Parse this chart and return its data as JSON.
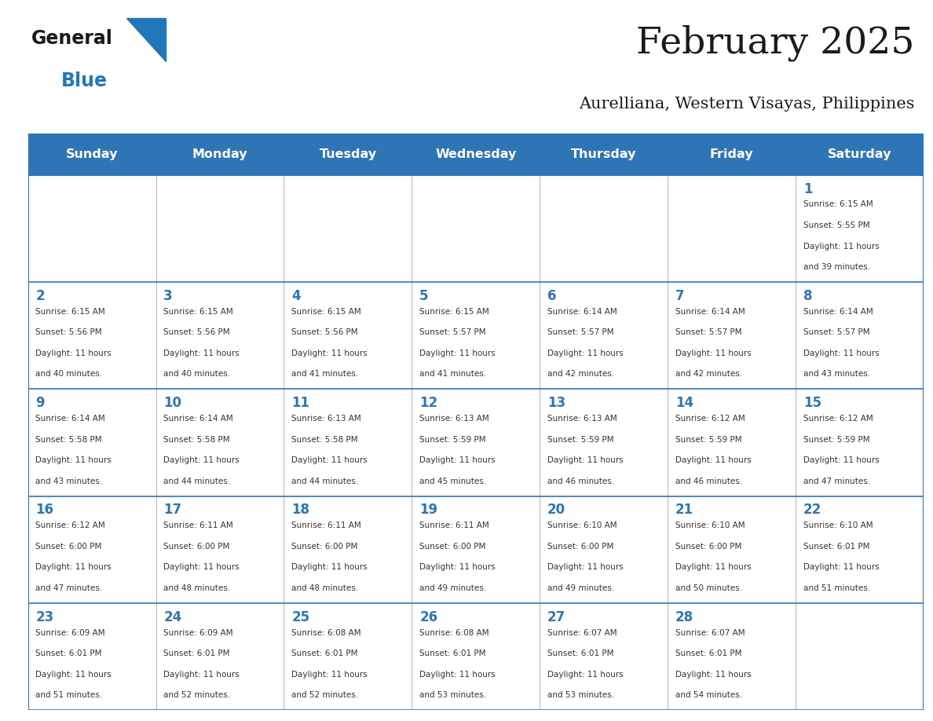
{
  "title": "February 2025",
  "subtitle": "Aurelliana, Western Visayas, Philippines",
  "header_bg": "#2E75B6",
  "header_text_color": "#FFFFFF",
  "border_color": "#2E75B6",
  "cell_border_color": "#AAAAAA",
  "day_names": [
    "Sunday",
    "Monday",
    "Tuesday",
    "Wednesday",
    "Thursday",
    "Friday",
    "Saturday"
  ],
  "title_color": "#1a1a1a",
  "subtitle_color": "#1a1a1a",
  "number_color": "#2E75B6",
  "text_color": "#333333",
  "logo_general_color": "#1a1a1a",
  "logo_blue_color": "#2277BB",
  "calendar_data": [
    [
      null,
      null,
      null,
      null,
      null,
      null,
      {
        "day": 1,
        "sunrise": "6:15 AM",
        "sunset": "5:55 PM",
        "daylight_hours": 11,
        "daylight_minutes": 39
      }
    ],
    [
      {
        "day": 2,
        "sunrise": "6:15 AM",
        "sunset": "5:56 PM",
        "daylight_hours": 11,
        "daylight_minutes": 40
      },
      {
        "day": 3,
        "sunrise": "6:15 AM",
        "sunset": "5:56 PM",
        "daylight_hours": 11,
        "daylight_minutes": 40
      },
      {
        "day": 4,
        "sunrise": "6:15 AM",
        "sunset": "5:56 PM",
        "daylight_hours": 11,
        "daylight_minutes": 41
      },
      {
        "day": 5,
        "sunrise": "6:15 AM",
        "sunset": "5:57 PM",
        "daylight_hours": 11,
        "daylight_minutes": 41
      },
      {
        "day": 6,
        "sunrise": "6:14 AM",
        "sunset": "5:57 PM",
        "daylight_hours": 11,
        "daylight_minutes": 42
      },
      {
        "day": 7,
        "sunrise": "6:14 AM",
        "sunset": "5:57 PM",
        "daylight_hours": 11,
        "daylight_minutes": 42
      },
      {
        "day": 8,
        "sunrise": "6:14 AM",
        "sunset": "5:57 PM",
        "daylight_hours": 11,
        "daylight_minutes": 43
      }
    ],
    [
      {
        "day": 9,
        "sunrise": "6:14 AM",
        "sunset": "5:58 PM",
        "daylight_hours": 11,
        "daylight_minutes": 43
      },
      {
        "day": 10,
        "sunrise": "6:14 AM",
        "sunset": "5:58 PM",
        "daylight_hours": 11,
        "daylight_minutes": 44
      },
      {
        "day": 11,
        "sunrise": "6:13 AM",
        "sunset": "5:58 PM",
        "daylight_hours": 11,
        "daylight_minutes": 44
      },
      {
        "day": 12,
        "sunrise": "6:13 AM",
        "sunset": "5:59 PM",
        "daylight_hours": 11,
        "daylight_minutes": 45
      },
      {
        "day": 13,
        "sunrise": "6:13 AM",
        "sunset": "5:59 PM",
        "daylight_hours": 11,
        "daylight_minutes": 46
      },
      {
        "day": 14,
        "sunrise": "6:12 AM",
        "sunset": "5:59 PM",
        "daylight_hours": 11,
        "daylight_minutes": 46
      },
      {
        "day": 15,
        "sunrise": "6:12 AM",
        "sunset": "5:59 PM",
        "daylight_hours": 11,
        "daylight_minutes": 47
      }
    ],
    [
      {
        "day": 16,
        "sunrise": "6:12 AM",
        "sunset": "6:00 PM",
        "daylight_hours": 11,
        "daylight_minutes": 47
      },
      {
        "day": 17,
        "sunrise": "6:11 AM",
        "sunset": "6:00 PM",
        "daylight_hours": 11,
        "daylight_minutes": 48
      },
      {
        "day": 18,
        "sunrise": "6:11 AM",
        "sunset": "6:00 PM",
        "daylight_hours": 11,
        "daylight_minutes": 48
      },
      {
        "day": 19,
        "sunrise": "6:11 AM",
        "sunset": "6:00 PM",
        "daylight_hours": 11,
        "daylight_minutes": 49
      },
      {
        "day": 20,
        "sunrise": "6:10 AM",
        "sunset": "6:00 PM",
        "daylight_hours": 11,
        "daylight_minutes": 49
      },
      {
        "day": 21,
        "sunrise": "6:10 AM",
        "sunset": "6:00 PM",
        "daylight_hours": 11,
        "daylight_minutes": 50
      },
      {
        "day": 22,
        "sunrise": "6:10 AM",
        "sunset": "6:01 PM",
        "daylight_hours": 11,
        "daylight_minutes": 51
      }
    ],
    [
      {
        "day": 23,
        "sunrise": "6:09 AM",
        "sunset": "6:01 PM",
        "daylight_hours": 11,
        "daylight_minutes": 51
      },
      {
        "day": 24,
        "sunrise": "6:09 AM",
        "sunset": "6:01 PM",
        "daylight_hours": 11,
        "daylight_minutes": 52
      },
      {
        "day": 25,
        "sunrise": "6:08 AM",
        "sunset": "6:01 PM",
        "daylight_hours": 11,
        "daylight_minutes": 52
      },
      {
        "day": 26,
        "sunrise": "6:08 AM",
        "sunset": "6:01 PM",
        "daylight_hours": 11,
        "daylight_minutes": 53
      },
      {
        "day": 27,
        "sunrise": "6:07 AM",
        "sunset": "6:01 PM",
        "daylight_hours": 11,
        "daylight_minutes": 53
      },
      {
        "day": 28,
        "sunrise": "6:07 AM",
        "sunset": "6:01 PM",
        "daylight_hours": 11,
        "daylight_minutes": 54
      },
      null
    ]
  ]
}
